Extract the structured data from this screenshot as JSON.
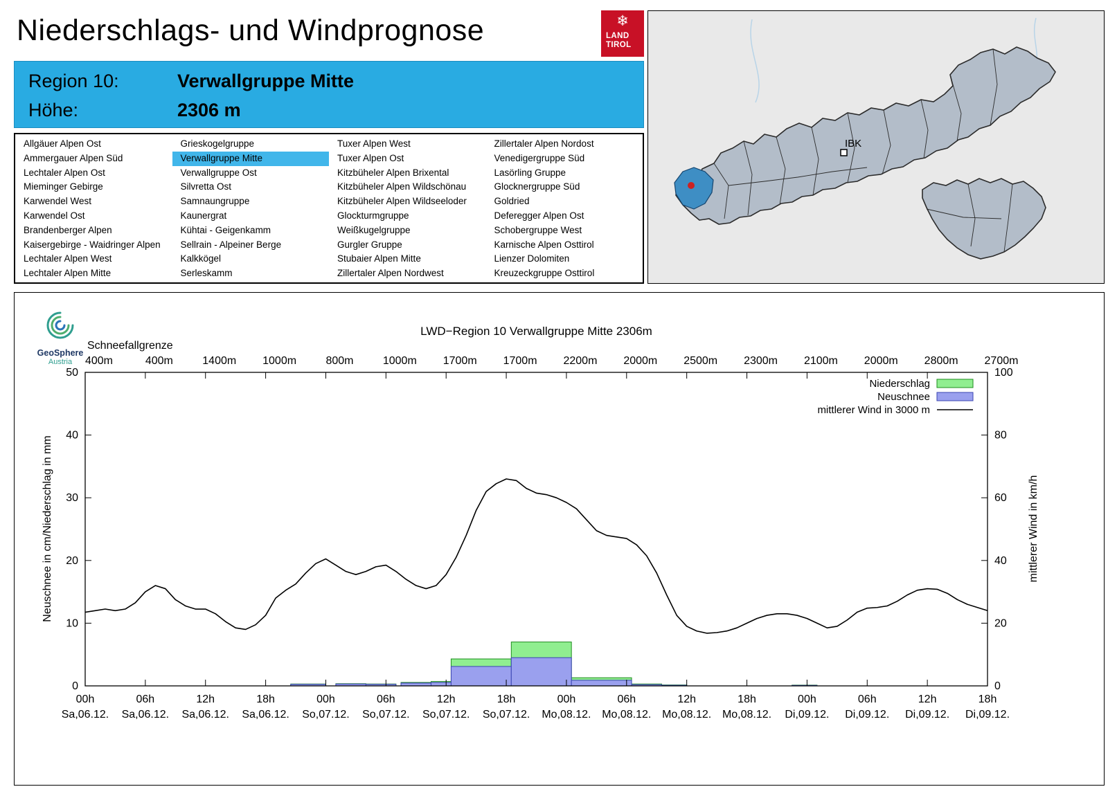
{
  "page": {
    "title": "Niederschlags- und Windprognose"
  },
  "logo": {
    "line1": "LAND",
    "line2": "TIROL",
    "snowflake_icon": "❄"
  },
  "map": {
    "city_label": "IBK"
  },
  "region_header": {
    "region_label": "Region 10:",
    "region_value": "Verwallgruppe Mitte",
    "altitude_label": "Höhe:",
    "altitude_value": "2306 m"
  },
  "region_list": {
    "selected": "Verwallgruppe Mitte",
    "columns": [
      [
        "Allgäuer Alpen Ost",
        "Ammergauer Alpen Süd",
        "Lechtaler Alpen Ost",
        "Mieminger Gebirge",
        "Karwendel West",
        "Karwendel Ost",
        "Brandenberger Alpen",
        "Kaisergebirge - Waidringer Alpen",
        "Lechtaler Alpen West",
        "Lechtaler Alpen Mitte"
      ],
      [
        "Grieskogelgruppe",
        "Verwallgruppe Mitte",
        "Verwallgruppe Ost",
        "Silvretta Ost",
        "Samnaungruppe",
        "Kaunergrat",
        "Kühtai - Geigenkamm",
        "Sellrain - Alpeiner Berge",
        "Kalkkögel",
        "Serleskamm"
      ],
      [
        "Tuxer Alpen West",
        "Tuxer Alpen Ost",
        "Kitzbüheler Alpen Brixental",
        "Kitzbüheler Alpen Wildschönau",
        "Kitzbüheler Alpen Wildseeloder",
        "Glockturmgruppe",
        "Weißkugelgruppe",
        "Gurgler Gruppe",
        "Stubaier Alpen Mitte",
        "Zillertaler Alpen Nordwest"
      ],
      [
        "Zillertaler Alpen Nordost",
        "Venedigergruppe Süd",
        "Lasörling Gruppe",
        "Glocknergruppe Süd",
        "Goldried",
        "Deferegger Alpen Ost",
        "Schobergruppe West",
        "Karnische Alpen Osttirol",
        "Lienzer Dolomiten",
        "Kreuzeckgruppe Osttirol"
      ]
    ]
  },
  "geosphere_logo": {
    "line1": "GeoSphere",
    "line2": "Austria"
  },
  "colors": {
    "header_blue": "#29abe2",
    "selection_blue": "#41b6ea",
    "logo_red": "#c81126",
    "map_region_fill": "#b3bdc9",
    "map_highlight": "#3e8ec4",
    "niederschlag": "#90ee90",
    "niederschlag_border": "#1e8c1e",
    "neuschnee": "#9aa0ee",
    "neuschnee_border": "#3a44b2",
    "wind": "#000000"
  },
  "chart_data": {
    "type": "line+bar",
    "title": "LWD−Region 10 Verwallgruppe Mitte 2306m",
    "snowline_label": "Schneefallgrenze",
    "snowline_values": [
      "400m",
      "400m",
      "1400m",
      "1000m",
      "800m",
      "1000m",
      "1700m",
      "1700m",
      "2200m",
      "2000m",
      "2500m",
      "2300m",
      "2100m",
      "2000m",
      "2800m",
      "2700m"
    ],
    "ylabel_left": "Neuschnee in cm/Niederschlag in mm",
    "ylabel_right": "mittlerer Wind in km/h",
    "ylim_left": [
      0,
      50
    ],
    "ylim_right": [
      0,
      100
    ],
    "yticks_left": [
      0,
      10,
      20,
      30,
      40,
      50
    ],
    "yticks_right": [
      0,
      20,
      40,
      60,
      80,
      100
    ],
    "x_hours_range": [
      0,
      90
    ],
    "xticks": [
      {
        "t": "00h",
        "d": "Sa,06.12."
      },
      {
        "t": "06h",
        "d": "Sa,06.12."
      },
      {
        "t": "12h",
        "d": "Sa,06.12."
      },
      {
        "t": "18h",
        "d": "Sa,06.12."
      },
      {
        "t": "00h",
        "d": "So,07.12."
      },
      {
        "t": "06h",
        "d": "So,07.12."
      },
      {
        "t": "12h",
        "d": "So,07.12."
      },
      {
        "t": "18h",
        "d": "So,07.12."
      },
      {
        "t": "00h",
        "d": "Mo,08.12."
      },
      {
        "t": "06h",
        "d": "Mo,08.12."
      },
      {
        "t": "12h",
        "d": "Mo,08.12."
      },
      {
        "t": "18h",
        "d": "Mo,08.12."
      },
      {
        "t": "00h",
        "d": "Di,09.12."
      },
      {
        "t": "06h",
        "d": "Di,09.12."
      },
      {
        "t": "12h",
        "d": "Di,09.12."
      },
      {
        "t": "18h",
        "d": "Di,09.12."
      }
    ],
    "legend": [
      {
        "label": "Niederschlag",
        "type": "box",
        "color": "#90ee90",
        "border": "#1e8c1e"
      },
      {
        "label": "Neuschnee",
        "type": "box",
        "color": "#9aa0ee",
        "border": "#3a44b2"
      },
      {
        "label": "mittlerer Wind in 3000 m",
        "type": "line",
        "color": "#000000"
      }
    ],
    "bars": [
      {
        "start": 20.5,
        "end": 24,
        "niederschlag": 0.3,
        "neuschnee": 0.25
      },
      {
        "start": 25,
        "end": 28,
        "niederschlag": 0.35,
        "neuschnee": 0.3
      },
      {
        "start": 28,
        "end": 31,
        "niederschlag": 0.3,
        "neuschnee": 0.25
      },
      {
        "start": 31.5,
        "end": 34.5,
        "niederschlag": 0.55,
        "neuschnee": 0.45
      },
      {
        "start": 34.5,
        "end": 36.5,
        "niederschlag": 0.7,
        "neuschnee": 0.55
      },
      {
        "start": 36.5,
        "end": 42.5,
        "niederschlag": 4.3,
        "neuschnee": 3.1
      },
      {
        "start": 42.5,
        "end": 48.5,
        "niederschlag": 7.0,
        "neuschnee": 4.5
      },
      {
        "start": 48.5,
        "end": 54.5,
        "niederschlag": 1.3,
        "neuschnee": 0.9
      },
      {
        "start": 54.5,
        "end": 57.5,
        "niederschlag": 0.3,
        "neuschnee": 0.2
      },
      {
        "start": 57.5,
        "end": 60,
        "niederschlag": 0.15,
        "neuschnee": 0.1
      },
      {
        "start": 70.5,
        "end": 73,
        "niederschlag": 0.12,
        "neuschnee": 0.08
      }
    ],
    "wind_kmh": [
      [
        0,
        23.5
      ],
      [
        1,
        24
      ],
      [
        2,
        24.5
      ],
      [
        3,
        24
      ],
      [
        4,
        24.5
      ],
      [
        5,
        26.5
      ],
      [
        6,
        30
      ],
      [
        7,
        32
      ],
      [
        8,
        31
      ],
      [
        9,
        27.5
      ],
      [
        10,
        25.5
      ],
      [
        11,
        24.5
      ],
      [
        12,
        24.5
      ],
      [
        13,
        23
      ],
      [
        14,
        20.5
      ],
      [
        15,
        18.5
      ],
      [
        16,
        18
      ],
      [
        17,
        19.5
      ],
      [
        18,
        22.5
      ],
      [
        19,
        28
      ],
      [
        20,
        30.5
      ],
      [
        21,
        32.5
      ],
      [
        22,
        36
      ],
      [
        23,
        39
      ],
      [
        24,
        40.5
      ],
      [
        25,
        38.5
      ],
      [
        26,
        36.5
      ],
      [
        27,
        35.5
      ],
      [
        28,
        36.5
      ],
      [
        29,
        38
      ],
      [
        30,
        38.5
      ],
      [
        31,
        36.5
      ],
      [
        32,
        34
      ],
      [
        33,
        32
      ],
      [
        34,
        31
      ],
      [
        35,
        32
      ],
      [
        36,
        35.5
      ],
      [
        37,
        41
      ],
      [
        38,
        48
      ],
      [
        39,
        56
      ],
      [
        40,
        62
      ],
      [
        41,
        64.5
      ],
      [
        42,
        66
      ],
      [
        43,
        65.5
      ],
      [
        44,
        63
      ],
      [
        45,
        61.5
      ],
      [
        46,
        61
      ],
      [
        47,
        60
      ],
      [
        48,
        58.5
      ],
      [
        49,
        56.5
      ],
      [
        50,
        53
      ],
      [
        51,
        49.5
      ],
      [
        52,
        48
      ],
      [
        53,
        47.5
      ],
      [
        54,
        47
      ],
      [
        55,
        45
      ],
      [
        56,
        41.5
      ],
      [
        57,
        36
      ],
      [
        58,
        29
      ],
      [
        59,
        22.5
      ],
      [
        60,
        19
      ],
      [
        61,
        17.5
      ],
      [
        62,
        16.8
      ],
      [
        63,
        17
      ],
      [
        64,
        17.5
      ],
      [
        65,
        18.5
      ],
      [
        66,
        20
      ],
      [
        67,
        21.5
      ],
      [
        68,
        22.5
      ],
      [
        69,
        23
      ],
      [
        70,
        23
      ],
      [
        71,
        22.5
      ],
      [
        72,
        21.5
      ],
      [
        73,
        20
      ],
      [
        74,
        18.5
      ],
      [
        75,
        19
      ],
      [
        76,
        21
      ],
      [
        77,
        23.5
      ],
      [
        78,
        24.8
      ],
      [
        79,
        25
      ],
      [
        80,
        25.5
      ],
      [
        81,
        27
      ],
      [
        82,
        29
      ],
      [
        83,
        30.5
      ],
      [
        84,
        31
      ],
      [
        85,
        30.8
      ],
      [
        86,
        29.5
      ],
      [
        87,
        27.5
      ],
      [
        88,
        26
      ],
      [
        89,
        25
      ],
      [
        90,
        24
      ]
    ]
  }
}
